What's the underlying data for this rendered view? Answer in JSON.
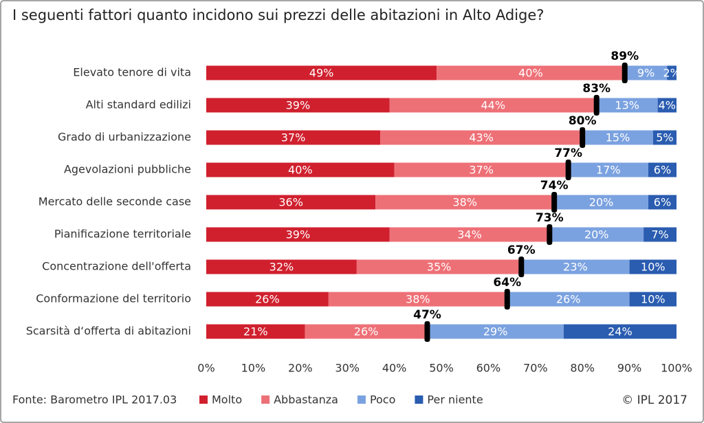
{
  "chart_data": {
    "type": "stacked-bar-horizontal",
    "title": "I seguenti fattori quanto incidono sui prezzi delle abitazioni in Alto Adige?",
    "source": "Fonte: Barometro IPL 2017.03",
    "copyright": "© IPL 2017",
    "categories": [
      "Elevato tenore di vita",
      "Alti standard edilizi",
      "Grado di urbanizzazione",
      "Agevolazioni pubbliche",
      "Mercato delle seconde case",
      "Pianificazione territoriale",
      "Concentrazione dell'offerta",
      "Conformazione del territorio",
      "Scarsità d‘offerta di abitazioni"
    ],
    "series": [
      {
        "name": "Molto",
        "color": "#d0202e",
        "values": [
          49,
          39,
          37,
          40,
          36,
          39,
          32,
          26,
          21
        ],
        "value_labels": [
          "49%",
          "39%",
          "37%",
          "40%",
          "36%",
          "39%",
          "32%",
          "26%",
          "21%"
        ]
      },
      {
        "name": "Abbastanza",
        "color": "#ee7077",
        "values": [
          40,
          44,
          43,
          37,
          38,
          34,
          35,
          38,
          26
        ],
        "value_labels": [
          "40%",
          "44%",
          "43%",
          "37%",
          "38%",
          "34%",
          "35%",
          "38%",
          "26%"
        ]
      },
      {
        "name": "Poco",
        "color": "#7ba2e0",
        "values": [
          9,
          13,
          15,
          17,
          20,
          20,
          23,
          26,
          29
        ],
        "value_labels": [
          "9%",
          "13%",
          "15%",
          "17%",
          "20%",
          "20%",
          "23%",
          "26%",
          "29%"
        ]
      },
      {
        "name": "Per niente",
        "color": "#2a5cb0",
        "values": [
          2,
          4,
          5,
          6,
          6,
          7,
          10,
          10,
          24
        ],
        "value_labels": [
          "2%",
          "4%",
          "5%",
          "6%",
          "6%",
          "7%",
          "10%",
          "10%",
          "24%"
        ]
      }
    ],
    "totals": {
      "values": [
        89,
        83,
        80,
        77,
        74,
        73,
        67,
        64,
        47
      ],
      "value_labels": [
        "89%",
        "83%",
        "80%",
        "77%",
        "74%",
        "73%",
        "67%",
        "64%",
        "47%"
      ]
    },
    "xlim": [
      0,
      100
    ],
    "xticks": [
      {
        "value": 0,
        "label": "0%"
      },
      {
        "value": 10,
        "label": "10%"
      },
      {
        "value": 20,
        "label": "20%"
      },
      {
        "value": 30,
        "label": "30%"
      },
      {
        "value": 40,
        "label": "40%"
      },
      {
        "value": 50,
        "label": "50%"
      },
      {
        "value": 60,
        "label": "60%"
      },
      {
        "value": 70,
        "label": "70%"
      },
      {
        "value": 80,
        "label": "80%"
      },
      {
        "value": 90,
        "label": "90%"
      },
      {
        "value": 100,
        "label": "100%"
      }
    ],
    "legend": "bottom"
  }
}
